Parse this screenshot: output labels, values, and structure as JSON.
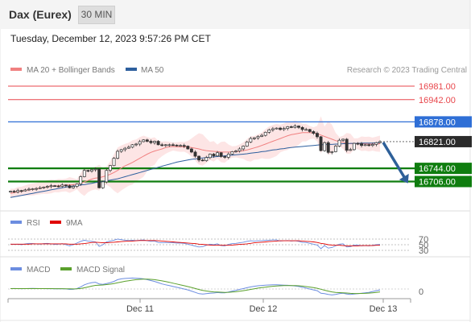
{
  "header": {
    "symbol": "Dax (Eurex)",
    "timeframe": "30 MIN",
    "datetime": "Tuesday, December 12, 2023 9:57:26 PM CET"
  },
  "legend": {
    "ma20": "MA 20 + Bollinger Bands",
    "ma50": "MA 50",
    "credit": "Research © 2023 Trading Central",
    "rsi": "RSI",
    "rsi_ma": "9MA",
    "macd": "MACD",
    "macd_signal": "MACD Signal"
  },
  "colors": {
    "resistance": "#e8474c",
    "pivot": "#2f6fd6",
    "support": "#0f7d0f",
    "last": "#2b2b2b",
    "candle_up": "#333333",
    "ma20": "#f08080",
    "ma50": "#2d5f9e",
    "bollinger": "#fcdede",
    "rsi": "#6c8de0",
    "rsi_ma": "#e00000",
    "macd": "#6c8de0",
    "macd_signal": "#5aa02c",
    "arrow": "#2e6099"
  },
  "chart_data": {
    "type": "candlestick",
    "price_range": [
      16580,
      17010
    ],
    "levels": [
      {
        "value": 16981.0,
        "label": "16981.00",
        "kind": "resistance"
      },
      {
        "value": 16942.0,
        "label": "16942.00",
        "kind": "resistance"
      },
      {
        "value": 16878.0,
        "label": "16878.00",
        "kind": "pivot"
      },
      {
        "value": 16821.0,
        "label": "16821.00",
        "kind": "last"
      },
      {
        "value": 16744.0,
        "label": "16744.00",
        "kind": "support"
      },
      {
        "value": 16706.0,
        "label": "16706.00",
        "kind": "support"
      }
    ],
    "arrow": {
      "from": 16821,
      "to": 16706,
      "direction": "down"
    },
    "x_ticks": [
      "Dec 11",
      "Dec 12",
      "Dec 13"
    ],
    "close": [
      16678,
      16676,
      16680,
      16679,
      16682,
      16684,
      16685,
      16686,
      16688,
      16690,
      16692,
      16694,
      16693,
      16692,
      16696,
      16694,
      16688,
      16692,
      16699,
      16720,
      16738,
      16736,
      16740,
      16742,
      16688,
      16705,
      16738,
      16752,
      16773,
      16793,
      16798,
      16802,
      16805,
      16812,
      16814,
      16821,
      16826,
      16822,
      16818,
      16822,
      16812,
      16810,
      16812,
      16812,
      16811,
      16810,
      16810,
      16808,
      16800,
      16791,
      16779,
      16768,
      16766,
      16775,
      16785,
      16780,
      16789,
      16778,
      16776,
      16785,
      16792,
      16794,
      16800,
      16808,
      16820,
      16830,
      16832,
      16836,
      16839,
      16848,
      16855,
      16858,
      16860,
      16856,
      16859,
      16864,
      16862,
      16866,
      16862,
      16856,
      16856,
      16850,
      16845,
      16835,
      16795,
      16818,
      16790,
      16792,
      16808,
      16825,
      16828,
      16796,
      16798,
      16816,
      16815,
      16810,
      16812,
      16810,
      16813,
      16818,
      16821
    ],
    "ma20": [
      16672,
      16674,
      16676,
      16678,
      16680,
      16682,
      16683,
      16685,
      16687,
      16689,
      16690,
      16692,
      16693,
      16694,
      16695,
      16696,
      16696,
      16697,
      16698,
      16701,
      16705,
      16709,
      16713,
      16716,
      16717,
      16720,
      16723,
      16727,
      16732,
      16738,
      16745,
      16751,
      16756,
      16761,
      16767,
      16773,
      16779,
      16785,
      16790,
      16794,
      16797,
      16800,
      16804,
      16806,
      16807,
      16806,
      16806,
      16806,
      16805,
      16804,
      16802,
      16800,
      16797,
      16795,
      16794,
      16793,
      16792,
      16791,
      16791,
      16791,
      16791,
      16792,
      16793,
      16795,
      16797,
      16800,
      16803,
      16806,
      16810,
      16814,
      16818,
      16822,
      16826,
      16830,
      16834,
      16838,
      16841,
      16843,
      16845,
      16847,
      16847,
      16847,
      16846,
      16844,
      16840,
      16836,
      16832,
      16828,
      16824,
      16821,
      16819,
      16816,
      16815,
      16815,
      16815,
      16815,
      16815,
      16814,
      16814,
      16814,
      16815
    ],
    "ma50": [
      16660,
      16662,
      16664,
      16666,
      16668,
      16670,
      16672,
      16674,
      16676,
      16678,
      16680,
      16682,
      16684,
      16686,
      16688,
      16690,
      16692,
      16693,
      16694,
      16696,
      16697,
      16699,
      16701,
      16703,
      16704,
      16706,
      16708,
      16710,
      16712,
      16714,
      16717,
      16720,
      16723,
      16726,
      16729,
      16732,
      16735,
      16738,
      16741,
      16744,
      16747,
      16750,
      16753,
      16756,
      16759,
      16762,
      16764,
      16766,
      16768,
      16770,
      16771,
      16773,
      16774,
      16775,
      16776,
      16777,
      16778,
      16779,
      16780,
      16781,
      16782,
      16783,
      16784,
      16785,
      16786,
      16788,
      16789,
      16790,
      16792,
      16793,
      16795,
      16797,
      16798,
      16800,
      16801,
      16803,
      16804,
      16805,
      16806,
      16807,
      16808,
      16809,
      16810,
      16811,
      16812,
      16812,
      16813,
      16813,
      16814,
      16814,
      16815,
      16815,
      16816,
      16816,
      16816,
      16817,
      16817,
      16817,
      16817,
      16818,
      16818
    ],
    "rsi": {
      "levels": [
        70,
        50,
        30
      ],
      "rsi": [
        52,
        51,
        52,
        50,
        53,
        55,
        54,
        53,
        52,
        54,
        55,
        53,
        51,
        52,
        54,
        50,
        46,
        50,
        56,
        62,
        66,
        63,
        62,
        60,
        44,
        50,
        60,
        63,
        66,
        70,
        68,
        66,
        65,
        66,
        65,
        66,
        67,
        64,
        62,
        63,
        58,
        57,
        58,
        57,
        57,
        56,
        56,
        55,
        52,
        49,
        45,
        42,
        43,
        48,
        52,
        50,
        53,
        47,
        46,
        51,
        54,
        55,
        57,
        59,
        62,
        64,
        63,
        64,
        64,
        66,
        66,
        67,
        67,
        63,
        64,
        65,
        63,
        64,
        62,
        58,
        58,
        55,
        52,
        49,
        36,
        47,
        38,
        40,
        46,
        52,
        53,
        42,
        43,
        49,
        49,
        46,
        47,
        46,
        48,
        50,
        51
      ],
      "ma": [
        52,
        52,
        52,
        52,
        52,
        52,
        53,
        53,
        53,
        53,
        53,
        53,
        53,
        53,
        53,
        53,
        52,
        52,
        52,
        53,
        54,
        56,
        58,
        59,
        58,
        57,
        57,
        58,
        59,
        60,
        61,
        62,
        63,
        63,
        64,
        65,
        65,
        65,
        65,
        65,
        64,
        63,
        62,
        61,
        60,
        59,
        58,
        57,
        56,
        55,
        54,
        52,
        51,
        50,
        49,
        48,
        48,
        48,
        48,
        48,
        49,
        50,
        51,
        52,
        53,
        55,
        57,
        58,
        59,
        60,
        61,
        62,
        63,
        64,
        64,
        64,
        64,
        64,
        64,
        63,
        62,
        61,
        60,
        58,
        55,
        53,
        50,
        49,
        48,
        48,
        47,
        46,
        46,
        46,
        46,
        47,
        47,
        47,
        47,
        48,
        48
      ]
    },
    "macd": {
      "zero_label": "0",
      "macd": [
        0.5,
        0.6,
        0.5,
        0.4,
        0.5,
        0.6,
        0.7,
        0.6,
        0.5,
        0.5,
        0.4,
        0.5,
        0.3,
        0.2,
        0.3,
        0.1,
        -0.5,
        -0.4,
        0.5,
        2.5,
        5,
        6.5,
        7.5,
        8,
        6,
        5.5,
        6.5,
        7.5,
        9,
        11,
        12,
        12.5,
        12.8,
        13,
        12.8,
        12.5,
        12,
        11,
        10,
        9,
        7.5,
        6,
        5,
        4,
        3,
        2,
        1,
        0,
        -1,
        -2.5,
        -4,
        -5.5,
        -6,
        -5.5,
        -5,
        -4.8,
        -4.2,
        -4.5,
        -4.5,
        -3.5,
        -2.5,
        -1.5,
        -0.5,
        0.5,
        1.5,
        2.5,
        3.2,
        3.8,
        4.2,
        4.5,
        4.8,
        5,
        5,
        4.8,
        4.6,
        4.4,
        4,
        3.6,
        3,
        2,
        1,
        0,
        -1,
        -2,
        -5,
        -5.5,
        -6.5,
        -7,
        -6.5,
        -5.5,
        -5,
        -6,
        -6.5,
        -6,
        -5.5,
        -5,
        -4.5,
        -4,
        -3,
        -2,
        -1
      ],
      "signal": [
        0.5,
        0.5,
        0.5,
        0.5,
        0.5,
        0.5,
        0.5,
        0.5,
        0.5,
        0.5,
        0.5,
        0.5,
        0.4,
        0.4,
        0.4,
        0.3,
        0.2,
        0.1,
        0.2,
        0.6,
        1.4,
        2.4,
        3.4,
        4.3,
        4.6,
        4.8,
        5.2,
        5.7,
        6.4,
        7.3,
        8.2,
        9.1,
        9.8,
        10.5,
        11,
        11.4,
        11.6,
        11.6,
        11.4,
        11,
        10.4,
        9.6,
        8.8,
        7.9,
        6.9,
        5.9,
        4.9,
        3.9,
        2.9,
        1.8,
        0.6,
        -0.6,
        -1.6,
        -2.4,
        -3,
        -3.4,
        -3.6,
        -3.8,
        -4,
        -3.9,
        -3.6,
        -3.2,
        -2.7,
        -2,
        -1.3,
        -0.5,
        0.3,
        1,
        1.6,
        2.2,
        2.8,
        3.2,
        3.6,
        3.8,
        4,
        4.1,
        4.1,
        4,
        3.8,
        3.4,
        2.9,
        2.3,
        1.6,
        0.9,
        -0.3,
        -1.4,
        -2.5,
        -3.4,
        -4,
        -4.3,
        -4.5,
        -4.8,
        -5.1,
        -5.3,
        -5.3,
        -5.2,
        -5.1,
        -4.9,
        -4.5,
        -4,
        -3.4
      ]
    }
  }
}
